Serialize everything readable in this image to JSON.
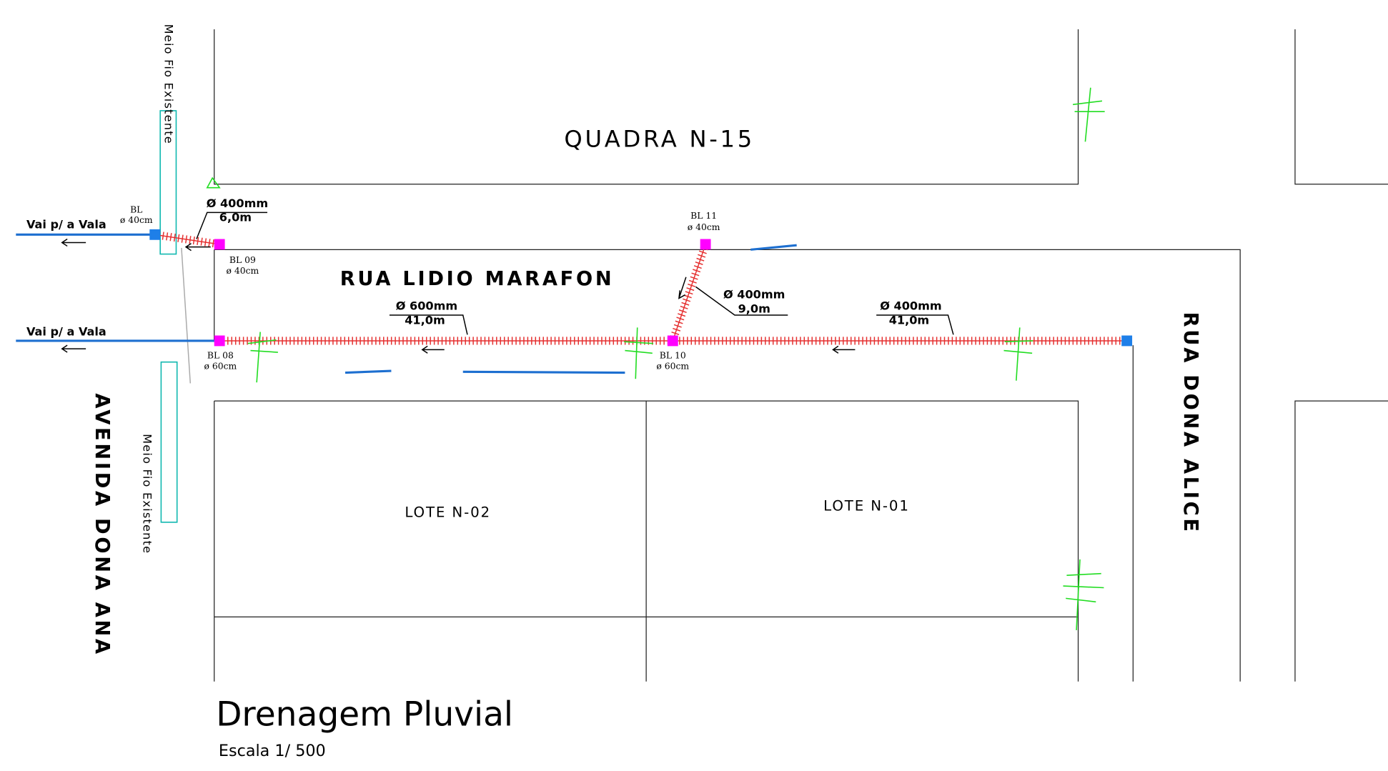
{
  "blocks": {
    "quadra": "QUADRA N-15",
    "lote_left": "LOTE N-02",
    "lote_right": "LOTE N-01"
  },
  "streets": {
    "rua_lidio": "RUA LIDIO MARAFON",
    "rua_alice": "RUA DONA ALICE",
    "avenida_ana": "AVENIDA DONA ANA"
  },
  "curbs": [
    "Meio Fio Existente",
    "Meio Fio Existente"
  ],
  "outlets": [
    "Vai p/ a Vala",
    "Vai p/ a Vala"
  ],
  "nodes": [
    {
      "label": "BL",
      "size": "ø 40cm"
    },
    {
      "label": "BL 09",
      "size": "ø 40cm"
    },
    {
      "label": "BL 11",
      "size": "ø 40cm"
    },
    {
      "label": "BL 08",
      "size": "ø 60cm"
    },
    {
      "label": "BL 10",
      "size": "ø 60cm"
    }
  ],
  "pipes": [
    {
      "diameter": "Ø 400mm",
      "length": "6,0m"
    },
    {
      "diameter": "Ø 400mm",
      "length": "9,0m"
    },
    {
      "diameter": "Ø 600mm",
      "length": "41,0m"
    },
    {
      "diameter": "Ø 400mm",
      "length": "41,0m"
    }
  ],
  "footer": {
    "title": "Drenagem Pluvial",
    "scale": "Escala 1/ 500"
  }
}
